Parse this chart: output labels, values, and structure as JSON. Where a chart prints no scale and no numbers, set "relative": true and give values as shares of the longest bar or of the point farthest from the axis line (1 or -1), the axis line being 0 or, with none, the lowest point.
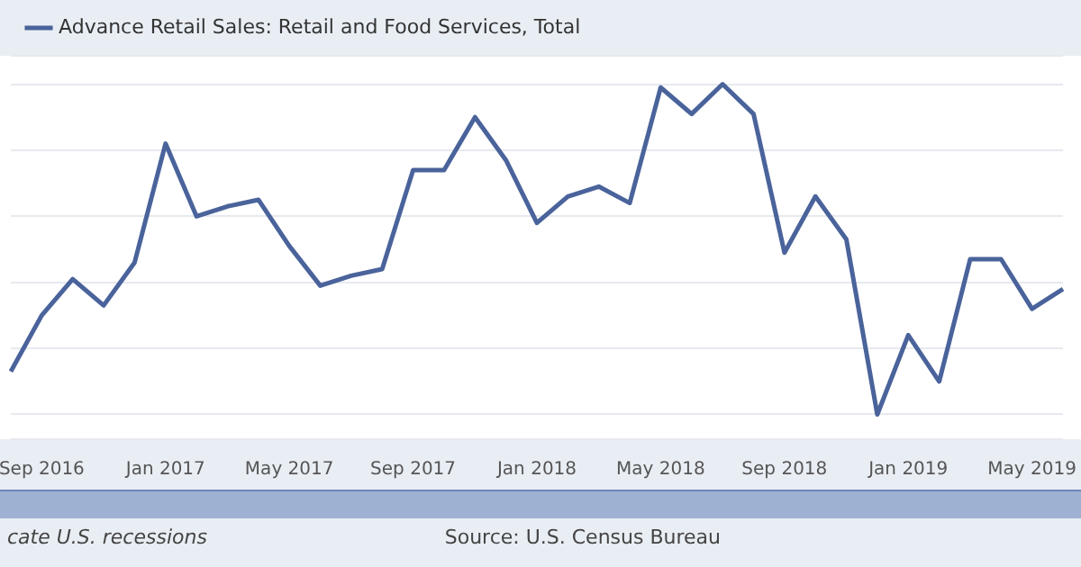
{
  "chart_data": {
    "type": "line",
    "relative": true,
    "legend": "top left",
    "grid": "y",
    "categories": [
      null,
      "Sep 2016",
      null,
      null,
      null,
      "Jan 2017",
      null,
      null,
      null,
      "May 2017",
      null,
      null,
      null,
      "Sep 2017",
      null,
      null,
      null,
      "Jan 2018",
      null,
      null,
      null,
      "May 2018",
      null,
      null,
      null,
      "Sep 2018",
      null,
      null,
      null,
      "Jan 2019",
      null,
      null,
      null,
      "May 2019",
      null
    ],
    "series": [
      {
        "name": "Advance Retail Sales: Retail and Food Services, Total",
        "color": "#4a639b",
        "values": [
          0.13,
          0.3,
          0.41,
          0.33,
          0.46,
          0.82,
          0.6,
          0.63,
          0.65,
          0.51,
          0.39,
          0.42,
          0.44,
          0.74,
          0.74,
          0.9,
          0.77,
          0.58,
          0.66,
          0.69,
          0.64,
          0.99,
          0.91,
          1,
          0.91,
          0.49,
          0.66,
          0.53,
          0,
          0.24,
          0.1,
          0.47,
          0.47,
          0.32,
          0.38
        ]
      }
    ],
    "annotations": [
      "cate U.S. recessions",
      "Source: U.S. Census Bureau"
    ]
  }
}
